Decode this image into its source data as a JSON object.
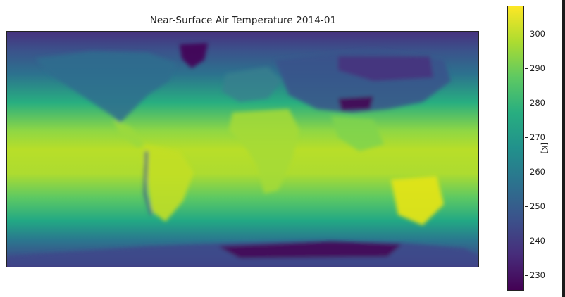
{
  "chart_data": {
    "type": "heatmap",
    "title": "Near-Surface Air Temperature 2014-01",
    "colorbar": {
      "label": "[K]",
      "ticks": [
        230,
        240,
        250,
        260,
        270,
        280,
        290,
        300
      ],
      "range": [
        226,
        308
      ],
      "colormap": "viridis"
    },
    "colors": {
      "viridis": [
        "#440154",
        "#472d7b",
        "#3b528b",
        "#2c728e",
        "#21918c",
        "#28ae80",
        "#5ec962",
        "#addc30",
        "#fde725"
      ]
    },
    "grid": false
  }
}
